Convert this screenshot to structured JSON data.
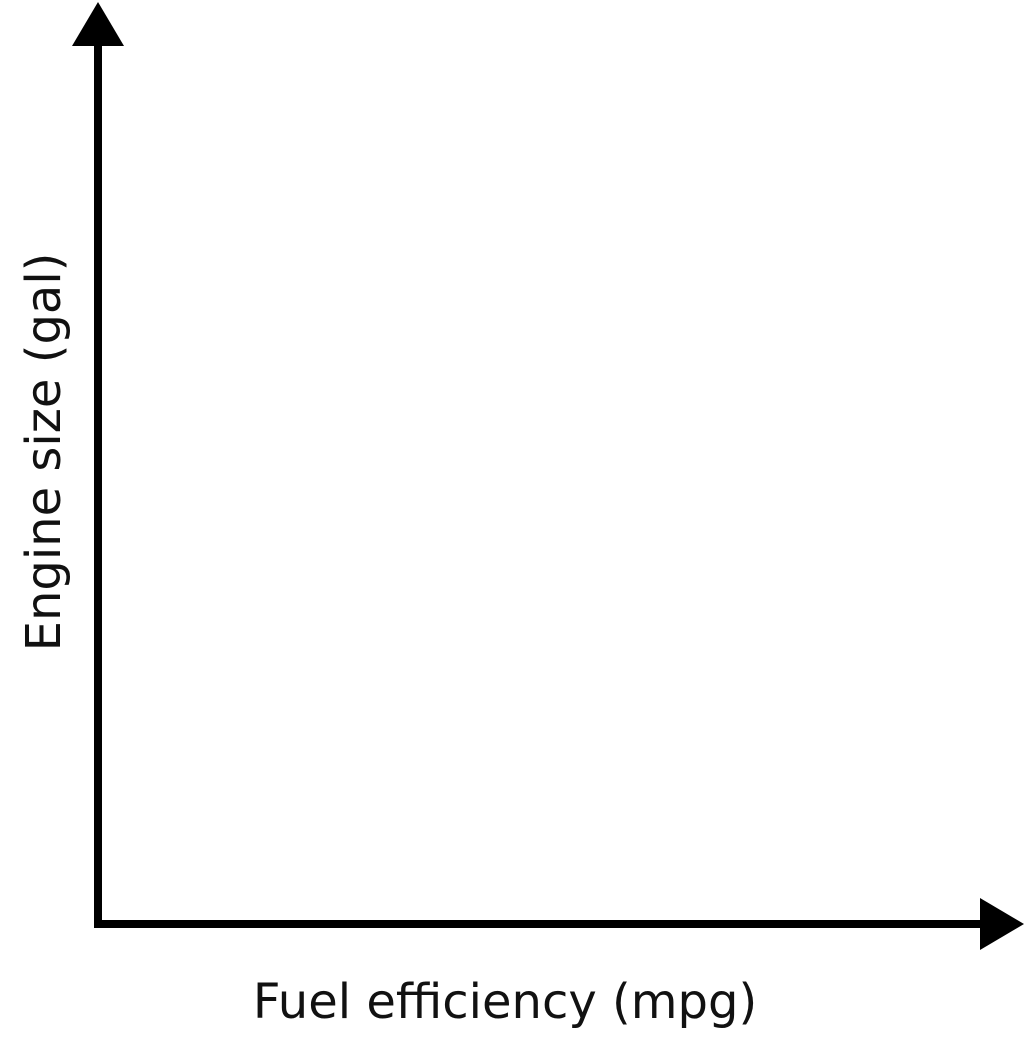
{
  "chart_data": {
    "type": "scatter",
    "title": "",
    "xlabel": "Fuel efficiency (mpg)",
    "ylabel": "Engine size (gal)",
    "series": [],
    "tick_labels": [],
    "grid": false,
    "legend": "none",
    "axis_color": "#000000",
    "background_color": "#ffffff"
  }
}
